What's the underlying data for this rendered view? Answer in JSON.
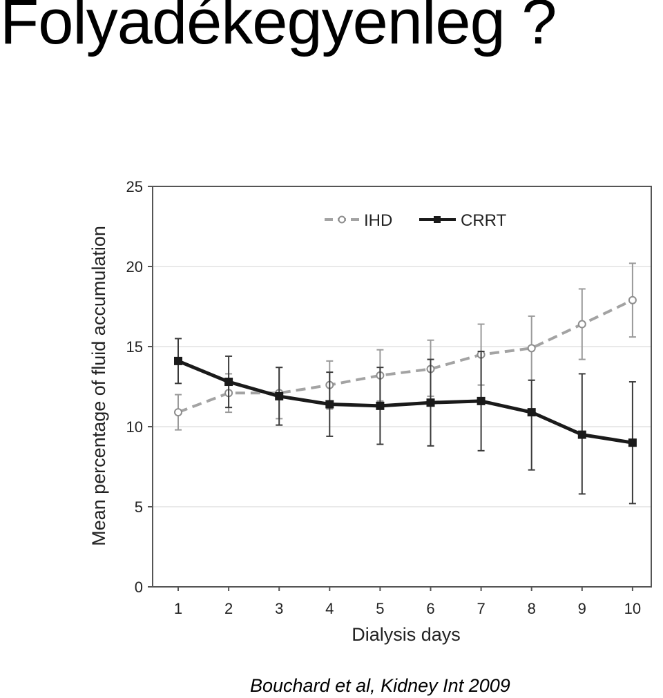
{
  "slide": {
    "title": "Folyadékegyenleg ?",
    "citation": "Bouchard et al, Kidney Int 2009"
  },
  "chart_data": {
    "type": "line",
    "xlabel": "Dialysis days",
    "ylabel": "Mean percentage of fluid accumulation",
    "x": [
      1,
      2,
      3,
      4,
      5,
      6,
      7,
      8,
      9,
      10
    ],
    "xticks": [
      "1",
      "2",
      "3",
      "4",
      "5",
      "6",
      "7",
      "8",
      "9",
      "10"
    ],
    "yticks": [
      "0",
      "5",
      "10",
      "15",
      "20",
      "25"
    ],
    "ylim": [
      0,
      25
    ],
    "grid": "horizontal",
    "legend_position": "top-right",
    "series": [
      {
        "name": "IHD",
        "style": "dashed",
        "marker": "open-circle",
        "color": "#a3a3a3",
        "values": [
          10.9,
          12.1,
          12.1,
          12.6,
          13.2,
          13.6,
          14.5,
          14.9,
          16.4,
          17.9
        ],
        "err_low": [
          9.8,
          10.9,
          10.5,
          11.1,
          11.6,
          11.9,
          12.6,
          12.9,
          14.2,
          15.6
        ],
        "err_high": [
          12.0,
          13.3,
          13.7,
          14.1,
          14.8,
          15.4,
          16.4,
          16.9,
          18.6,
          20.2
        ]
      },
      {
        "name": "CRRT",
        "style": "solid",
        "marker": "filled-square",
        "color": "#1a1a1a",
        "values": [
          14.1,
          12.8,
          11.9,
          11.4,
          11.3,
          11.5,
          11.6,
          10.9,
          9.5,
          9.0
        ],
        "err_low": [
          12.7,
          11.2,
          10.1,
          9.4,
          8.9,
          8.8,
          8.5,
          7.3,
          5.8,
          5.2
        ],
        "err_high": [
          15.5,
          14.4,
          13.7,
          13.4,
          13.7,
          14.2,
          14.7,
          12.9,
          13.3,
          12.8
        ]
      }
    ]
  }
}
